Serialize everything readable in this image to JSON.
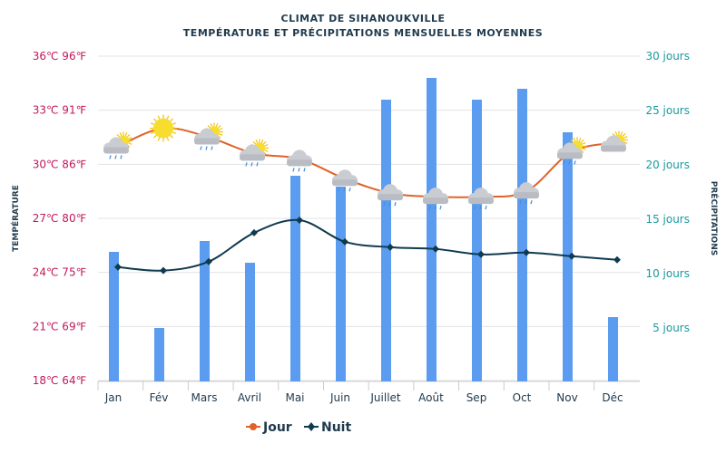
{
  "chart_data": {
    "type": "bar+line",
    "title": "CLIMAT DE SIHANOUKVILLE",
    "subtitle": "TEMPÉRATURE ET PRÉCIPITATIONS MENSUELLES MOYENNES",
    "ylabel_left": "TEMPÉRATURE",
    "ylabel_right": "PRÉCIPITATIONS",
    "categories": [
      "Jan",
      "Fév",
      "Mars",
      "Avril",
      "Mai",
      "Juin",
      "Juillet",
      "Août",
      "Sep",
      "Oct",
      "Nov",
      "Déc"
    ],
    "left_axis": {
      "range_c": [
        18,
        36
      ],
      "ticks": [
        "18℃ 64℉",
        "21℃ 69℉",
        "24℃ 75℉",
        "27℃ 80℉",
        "30℃ 86℉",
        "33℃ 91℉",
        "36℃ 96℉"
      ],
      "tick_values": [
        18,
        21,
        24,
        27,
        30,
        33,
        36
      ]
    },
    "right_axis": {
      "range": [
        0,
        30
      ],
      "ticks": [
        "5 jours",
        "10 jours",
        "15 jours",
        "20 jours",
        "25 jours",
        "30 jours"
      ],
      "tick_values": [
        5,
        10,
        15,
        20,
        25,
        30
      ]
    },
    "grid": true,
    "legend_position": "bottom",
    "series": [
      {
        "name": "Jour",
        "type": "line",
        "axis": "left",
        "color": "#e0622a",
        "values": [
          31.0,
          32.0,
          31.5,
          30.6,
          30.3,
          29.2,
          28.4,
          28.2,
          28.2,
          28.5,
          30.7,
          31.2
        ]
      },
      {
        "name": "Nuit",
        "type": "line",
        "axis": "left",
        "color": "#0f3a4f",
        "values": [
          24.3,
          24.1,
          24.6,
          26.2,
          26.9,
          25.7,
          25.4,
          25.3,
          25.0,
          25.1,
          24.9,
          24.7
        ]
      },
      {
        "type": "bar",
        "axis": "right",
        "color": "#5b9cf0",
        "values": [
          12,
          5,
          13,
          11,
          19,
          18,
          26,
          28,
          26,
          27,
          23,
          6
        ]
      }
    ],
    "weather_icons": [
      "cloud-sun-rain",
      "sun",
      "cloud-sun-rain",
      "cloud-sun-rain",
      "cloud-rain",
      "cloud-rain",
      "cloud-rain",
      "cloud-rain",
      "cloud-rain",
      "cloud-rain",
      "cloud-sun-rain",
      "sun-cloud"
    ]
  },
  "colors": {
    "title": "#1f3a4d",
    "left_axis_text": "#c2185b",
    "right_axis_text": "#1a9aa0",
    "grid": "#e3e3e3"
  }
}
